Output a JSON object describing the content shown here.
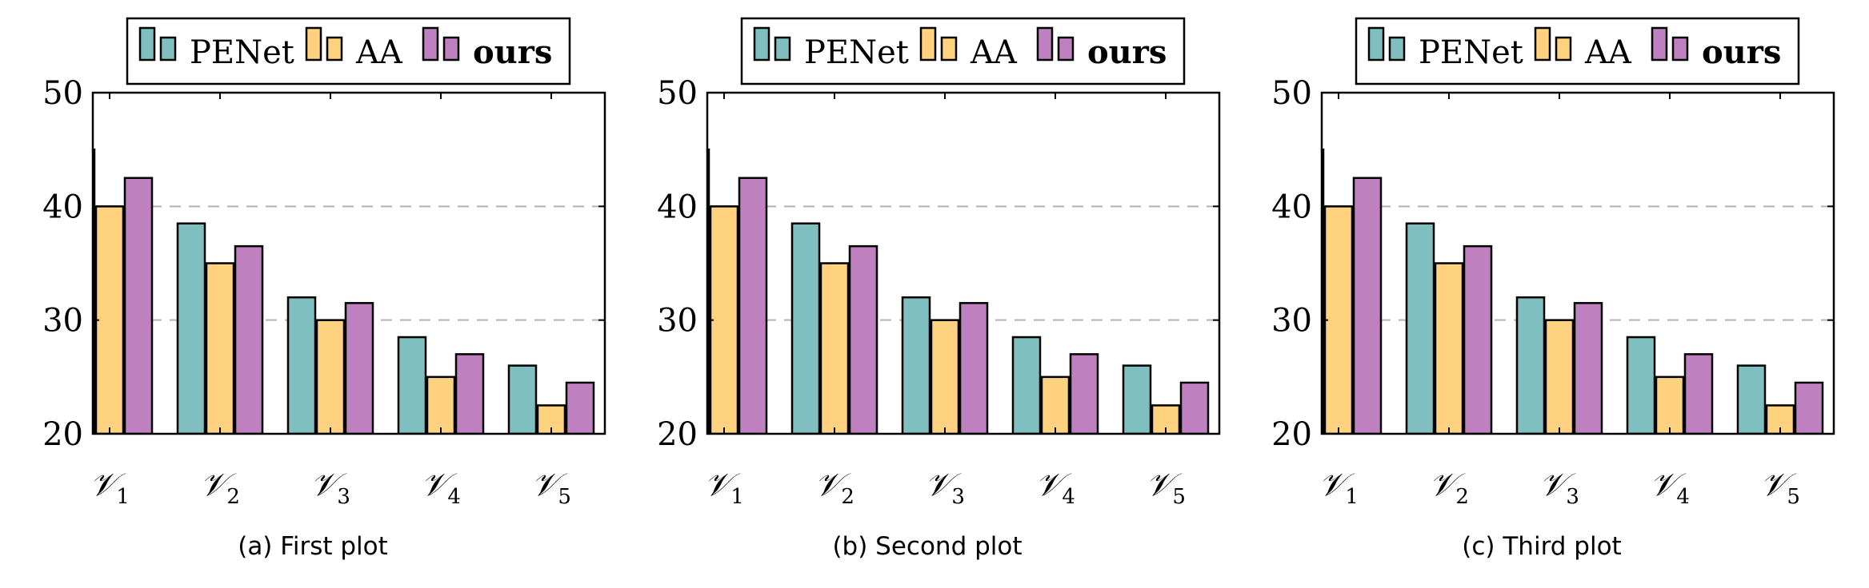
{
  "chart_data": [
    {
      "type": "bar",
      "caption": "(a) First plot",
      "categories": [
        "V1",
        "V2",
        "V3",
        "V4",
        "V5"
      ],
      "category_glyph": "𝒱",
      "category_subscripts": [
        "1",
        "2",
        "3",
        "4",
        "5"
      ],
      "series": [
        {
          "name": "PENet",
          "values": [
            45,
            38.5,
            32,
            28.5,
            26
          ],
          "color": "#80bfbf"
        },
        {
          "name": "AA",
          "values": [
            40,
            35,
            30,
            25,
            22.5
          ],
          "color": "#ffd280"
        },
        {
          "name": "ours",
          "values": [
            42.5,
            36.5,
            31.5,
            27,
            24.5
          ],
          "color": "#bf80bf"
        }
      ],
      "ylim": [
        20,
        50
      ],
      "yticks": [
        "20",
        "30",
        "40",
        "50"
      ],
      "grid": "y-dashed",
      "legend": "top-center"
    },
    {
      "type": "bar",
      "caption": "(b) Second plot",
      "categories": [
        "V1",
        "V2",
        "V3",
        "V4",
        "V5"
      ],
      "category_glyph": "𝒱",
      "category_subscripts": [
        "1",
        "2",
        "3",
        "4",
        "5"
      ],
      "series": [
        {
          "name": "PENet",
          "values": [
            45,
            38.5,
            32,
            28.5,
            26
          ],
          "color": "#80bfbf"
        },
        {
          "name": "AA",
          "values": [
            40,
            35,
            30,
            25,
            22.5
          ],
          "color": "#ffd280"
        },
        {
          "name": "ours",
          "values": [
            42.5,
            36.5,
            31.5,
            27,
            24.5
          ],
          "color": "#bf80bf"
        }
      ],
      "ylim": [
        20,
        50
      ],
      "yticks": [
        "20",
        "30",
        "40",
        "50"
      ],
      "grid": "y-dashed",
      "legend": "top-center"
    },
    {
      "type": "bar",
      "caption": "(c) Third plot",
      "categories": [
        "V1",
        "V2",
        "V3",
        "V4",
        "V5"
      ],
      "category_glyph": "𝒱",
      "category_subscripts": [
        "1",
        "2",
        "3",
        "4",
        "5"
      ],
      "series": [
        {
          "name": "PENet",
          "values": [
            45,
            38.5,
            32,
            28.5,
            26
          ],
          "color": "#80bfbf"
        },
        {
          "name": "AA",
          "values": [
            40,
            35,
            30,
            25,
            22.5
          ],
          "color": "#ffd280"
        },
        {
          "name": "ours",
          "values": [
            42.5,
            36.5,
            31.5,
            27,
            24.5
          ],
          "color": "#bf80bf"
        }
      ],
      "ylim": [
        20,
        50
      ],
      "yticks": [
        "20",
        "30",
        "40",
        "50"
      ],
      "grid": "y-dashed",
      "legend": "top-center"
    }
  ],
  "colors": {
    "axis": "#000000",
    "grid": "#b3b3b3",
    "bar_outline": "#000000"
  }
}
